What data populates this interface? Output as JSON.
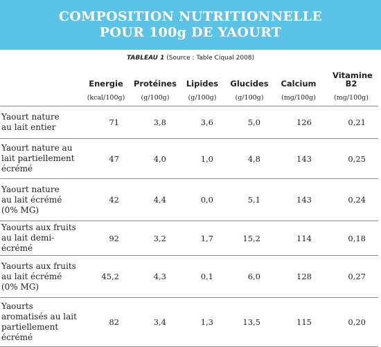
{
  "banner": {
    "line1": "COMPOSITION NUTRITIONNELLE",
    "line2": "POUR 100g DE YAOURT"
  },
  "caption": {
    "label": "TABLEAU 1",
    "source": " (Source : Table Ciqual 2008)"
  },
  "table": {
    "headers": [
      "Energie",
      "Protéines",
      "Lipides",
      "Glucides",
      "Calcium",
      "Vitamine B2"
    ],
    "units": [
      "(kcal/100g)",
      "(g/100g)",
      "(g/100g)",
      "(g/100g)",
      "(mg/100g)",
      "(mg/100g)"
    ],
    "rows": [
      {
        "name": "Yaourt nature au lait entier",
        "values": [
          "71",
          "3,8",
          "3,6",
          "5,0",
          "126",
          "0,21"
        ]
      },
      {
        "name": "Yaourt nature au lait partiellement écrémé",
        "values": [
          "47",
          "4,0",
          "1,0",
          "4,8",
          "143",
          "0,25"
        ]
      },
      {
        "name": "Yaourt nature au lait écrémé (0% MG)",
        "values": [
          "42",
          "4,4",
          "0,0",
          "5,1",
          "143",
          "0,24"
        ]
      },
      {
        "name": "Yaourts aux fruits au lait demi- écrémé",
        "values": [
          "92",
          "3,2",
          "1,7",
          "15,2",
          "114",
          "0,18"
        ]
      },
      {
        "name": "Yaourts aux fruits au lait écrémé (0% MG)",
        "values": [
          "45,2",
          "4,3",
          "0,1",
          "6,0",
          "128",
          "0,27"
        ]
      },
      {
        "name": "Yaourts aromatisés au lait partiellement écrémé",
        "values": [
          "82",
          "3,4",
          "1,3",
          "13,5",
          "115",
          "0,20"
        ]
      }
    ]
  }
}
